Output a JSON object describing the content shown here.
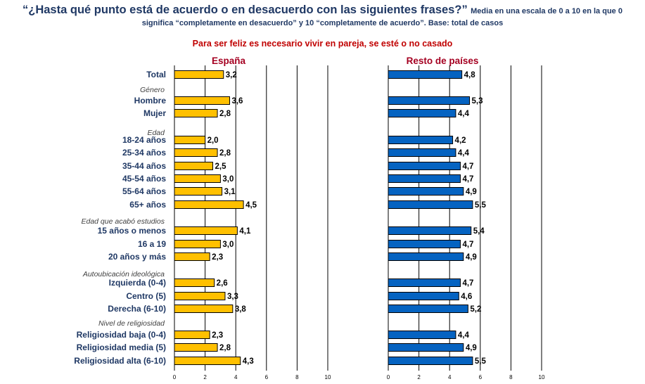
{
  "header": {
    "question": "“¿Hasta qué punto está de acuerdo o en desacuerdo con las siguientes frases?”",
    "note_line1": "Media en una escala de 0 a 10 en la que 0",
    "note_line2": "significa “completamente en desacuerdo” y 10 “completamente de acuerdo”. Base: total de casos"
  },
  "subtitle": "Para ser feliz es necesario vivir en pareja, se esté o no casado",
  "chart_data": [
    {
      "type": "bar",
      "orientation": "horizontal",
      "title": "España",
      "color": "#FFC000",
      "xlim": [
        0,
        10
      ],
      "xticks": [
        "0",
        "2",
        "4",
        "6",
        "8",
        "10"
      ],
      "grid": true,
      "groups": [
        "",
        "Género",
        "Edad",
        "Edad que acabó estudios",
        "Autoubicación ideológica",
        "Nivel de religiosidad"
      ],
      "categories": [
        "Total",
        "Hombre",
        "Mujer",
        "18-24 años",
        "25-34 años",
        "35-44 años",
        "45-54 años",
        "55-64 años",
        "65+ años",
        "15 años o menos",
        "16 a 19",
        "20 años y más",
        "Izquierda (0-4)",
        "Centro (5)",
        "Derecha (6-10)",
        "Religiosidad baja (0-4)",
        "Religiosidad media (5)",
        "Religiosidad alta (6-10)"
      ],
      "values": [
        3.2,
        3.6,
        2.8,
        2.0,
        2.8,
        2.5,
        3.0,
        3.1,
        4.5,
        4.1,
        3.0,
        2.3,
        2.6,
        3.3,
        3.8,
        2.3,
        2.8,
        4.3
      ],
      "labels": [
        "3,2",
        "3,6",
        "2,8",
        "2,0",
        "2,8",
        "2,5",
        "3,0",
        "3,1",
        "4,5",
        "4,1",
        "3,0",
        "2,3",
        "2,6",
        "3,3",
        "3,8",
        "2,3",
        "2,8",
        "4,3"
      ]
    },
    {
      "type": "bar",
      "orientation": "horizontal",
      "title": "Resto de países",
      "color": "#0563C1",
      "xlim": [
        0,
        10
      ],
      "xticks": [
        "0",
        "2",
        "4",
        "6",
        "8",
        "10"
      ],
      "grid": true,
      "categories": [
        "Total",
        "Hombre",
        "Mujer",
        "18-24 años",
        "25-34 años",
        "35-44 años",
        "45-54 años",
        "55-64 años",
        "65+ años",
        "15 años o menos",
        "16 a 19",
        "20 años y más",
        "Izquierda (0-4)",
        "Centro (5)",
        "Derecha (6-10)",
        "Religiosidad baja (0-4)",
        "Religiosidad media (5)",
        "Religiosidad alta (6-10)"
      ],
      "values": [
        4.8,
        5.3,
        4.4,
        4.2,
        4.4,
        4.7,
        4.7,
        4.9,
        5.5,
        5.4,
        4.7,
        4.9,
        4.7,
        4.6,
        5.2,
        4.4,
        4.9,
        5.5
      ],
      "labels": [
        "4,8",
        "5,3",
        "4,4",
        "4,2",
        "4,4",
        "4,7",
        "4,7",
        "4,9",
        "5,5",
        "5,4",
        "4,7",
        "4,9",
        "4,7",
        "4,6",
        "5,2",
        "4,4",
        "4,9",
        "5,5"
      ]
    }
  ]
}
